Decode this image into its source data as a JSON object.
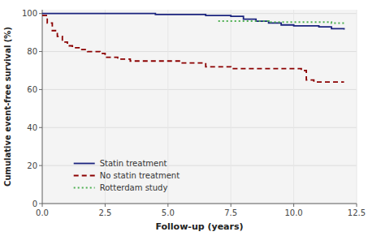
{
  "chart_data": {
    "type": "step",
    "x_label": "Follow-up (years)",
    "y_label": "Cumulative event-free survival (%)",
    "xlim": [
      0,
      12.5
    ],
    "ylim": [
      0,
      102
    ],
    "xticks": [
      {
        "value": 0,
        "label": "0.0"
      },
      2.5,
      {
        "value": 5,
        "label": "5.0"
      },
      7.5,
      {
        "value": 10,
        "label": "10.0"
      },
      12.5
    ],
    "yticks": [
      0,
      20,
      40,
      60,
      80,
      100
    ],
    "grid": true,
    "legend": "lower left",
    "series": [
      {
        "name": "Statin treatment",
        "color": "#1a237e",
        "line_style": "solid",
        "x": [
          0,
          0.5,
          1.0,
          1.5,
          2.0,
          2.5,
          3.0,
          3.5,
          4.0,
          4.5,
          5.0,
          5.5,
          6.0,
          6.5,
          7.0,
          7.5,
          8.0,
          8.5,
          9.0,
          9.5,
          10.0,
          10.5,
          11.0,
          11.5,
          12.0
        ],
        "values": [
          100,
          100,
          100,
          100,
          100,
          100,
          100,
          100,
          100,
          99.5,
          99.5,
          99.5,
          99.5,
          99,
          99,
          98.5,
          97,
          96,
          95,
          94,
          93.5,
          93.5,
          93,
          92,
          91.5
        ]
      },
      {
        "name": "No statin treatment",
        "color": "#8b0000",
        "line_style": "dashed",
        "x": [
          0,
          0.2,
          0.4,
          0.6,
          0.8,
          1.0,
          1.2,
          1.5,
          1.8,
          2.0,
          2.3,
          2.5,
          3.0,
          3.5,
          4.0,
          4.5,
          5.0,
          5.5,
          6.0,
          6.5,
          7.0,
          7.5,
          8.0,
          8.5,
          9.0,
          9.5,
          10.0,
          10.3,
          10.5,
          10.8,
          11.0,
          11.5,
          12.0
        ],
        "values": [
          99,
          95,
          91,
          88,
          85,
          83,
          82,
          81,
          80,
          80,
          79,
          77,
          76,
          75,
          75,
          75,
          75,
          74,
          74,
          72,
          72,
          71,
          71,
          71,
          71,
          71,
          71,
          70,
          65,
          64,
          64,
          64,
          64
        ]
      },
      {
        "name": "Rotterdam study",
        "color": "#4caf50",
        "line_style": "dotted",
        "x": [
          7.0,
          7.5,
          8.0,
          8.5,
          9.0,
          9.5,
          10.0,
          10.5,
          11.0,
          11.5,
          12.0
        ],
        "values": [
          96,
          96,
          96,
          96,
          95.5,
          95.5,
          95.5,
          95.5,
          95.5,
          95,
          95
        ]
      }
    ]
  }
}
